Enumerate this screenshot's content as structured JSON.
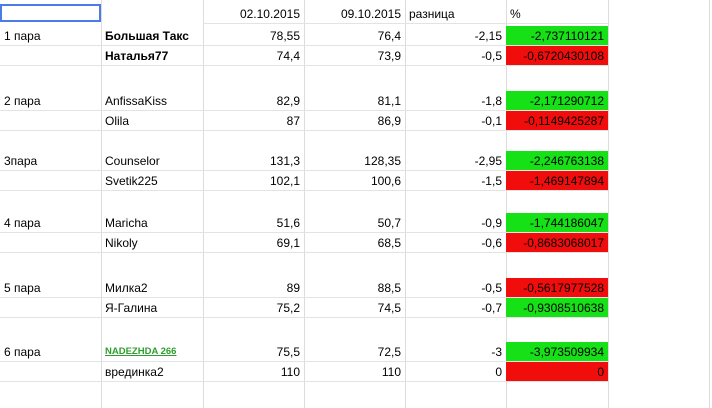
{
  "header": {
    "date1": "02.10.2015",
    "date2": "09.10.2015",
    "diff": "разница",
    "pct": "%"
  },
  "rows": [
    {
      "pair": "1 пара",
      "name": "Большая Такс",
      "v1": "78,55",
      "v2": "76,4",
      "diff": "-2,15",
      "pct": "-2,737110121",
      "color": "green",
      "style": "bold"
    },
    {
      "pair": "",
      "name": "Наталья77",
      "v1": "74,4",
      "v2": "73,9",
      "diff": "-0,5",
      "pct": "-0,6720430108",
      "color": "red",
      "style": "bold"
    },
    {
      "pair": "2 пара",
      "name": "AnfissaKiss",
      "v1": "82,9",
      "v2": "81,1",
      "diff": "-1,8",
      "pct": "-2,171290712",
      "color": "green",
      "style": ""
    },
    {
      "pair": "",
      "name": "Olila",
      "v1": "87",
      "v2": "86,9",
      "diff": "-0,1",
      "pct": "-0,1149425287",
      "color": "red",
      "style": ""
    },
    {
      "pair": "3пара",
      "name": "Counselor",
      "v1": "131,3",
      "v2": "128,35",
      "diff": "-2,95",
      "pct": "-2,246763138",
      "color": "green",
      "style": ""
    },
    {
      "pair": "",
      "name": "Svetik225",
      "v1": "102,1",
      "v2": "100,6",
      "diff": "-1,5",
      "pct": "-1,469147894",
      "color": "red",
      "style": ""
    },
    {
      "pair": "4 пара",
      "name": "Maricha",
      "v1": "51,6",
      "v2": "50,7",
      "diff": "-0,9",
      "pct": "-1,744186047",
      "color": "green",
      "style": ""
    },
    {
      "pair": "",
      "name": "Nikoly",
      "v1": "69,1",
      "v2": "68,5",
      "diff": "-0,6",
      "pct": "-0,8683068017",
      "color": "red",
      "style": ""
    },
    {
      "pair": "5 пара",
      "name": "Милка2",
      "v1": "89",
      "v2": "88,5",
      "diff": "-0,5",
      "pct": "-0,5617977528",
      "color": "red",
      "style": ""
    },
    {
      "pair": "",
      "name": "Я-Галина",
      "v1": "75,2",
      "v2": "74,5",
      "diff": "-0,7",
      "pct": "-0,9308510638",
      "color": "green",
      "style": ""
    },
    {
      "pair": "6 пара",
      "name": "NADEZHDA 266",
      "v1": "75,5",
      "v2": "72,5",
      "diff": "-3",
      "pct": "-3,973509934",
      "color": "green",
      "style": "link"
    },
    {
      "pair": "",
      "name": "врединка2",
      "v1": "110",
      "v2": "110",
      "diff": "0",
      "pct": "0",
      "color": "red",
      "style": ""
    }
  ]
}
